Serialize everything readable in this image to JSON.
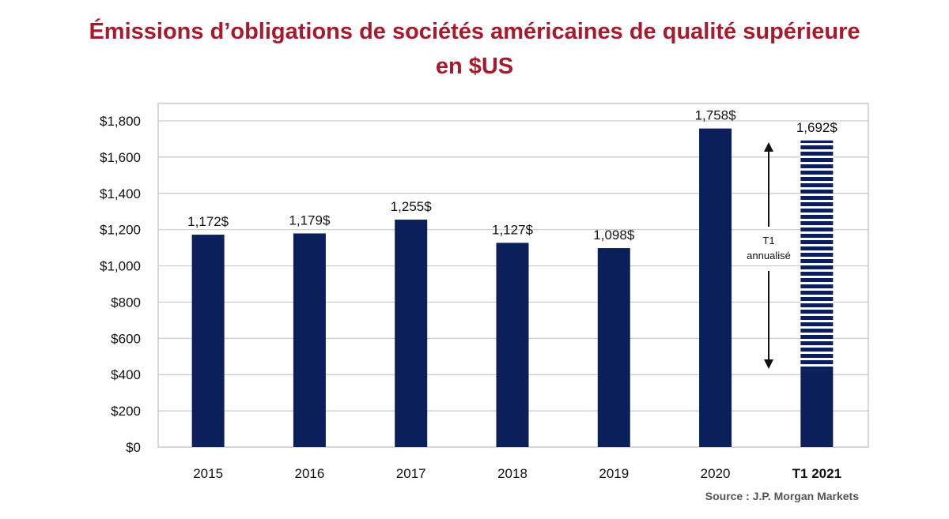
{
  "colors": {
    "title": "#a8192c",
    "bar": "#0b1f5b",
    "grid": "#c9c9c9",
    "hatch_light": "#ffffff"
  },
  "chart_data": {
    "type": "bar",
    "title_line1": "Émissions d’obligations de sociétés américaines de qualité supérieure",
    "title_line2": "en $US",
    "categories": [
      "2015",
      "2016",
      "2017",
      "2018",
      "2019",
      "2020",
      "T1 2021"
    ],
    "values": [
      1172,
      1179,
      1255,
      1127,
      1098,
      1758,
      1692
    ],
    "data_labels": [
      "1,172$",
      "1,179$",
      "1,255$",
      "1,127$",
      "1,098$",
      "1,758$",
      "1,692$"
    ],
    "annualized_actual_value": 423,
    "ylim": [
      0,
      1900
    ],
    "yticks": [
      0,
      200,
      400,
      600,
      800,
      1000,
      1200,
      1400,
      1600,
      1800
    ],
    "ytick_labels": [
      "$0",
      "$200",
      "$400",
      "$600",
      "$800",
      "$1,000",
      "$1,200",
      "$1,400",
      "$1,600",
      "$1,800"
    ],
    "grid": true,
    "annotation_line1": "T1",
    "annotation_line2": "annualisé",
    "source": "Source : J.P. Morgan Markets"
  }
}
